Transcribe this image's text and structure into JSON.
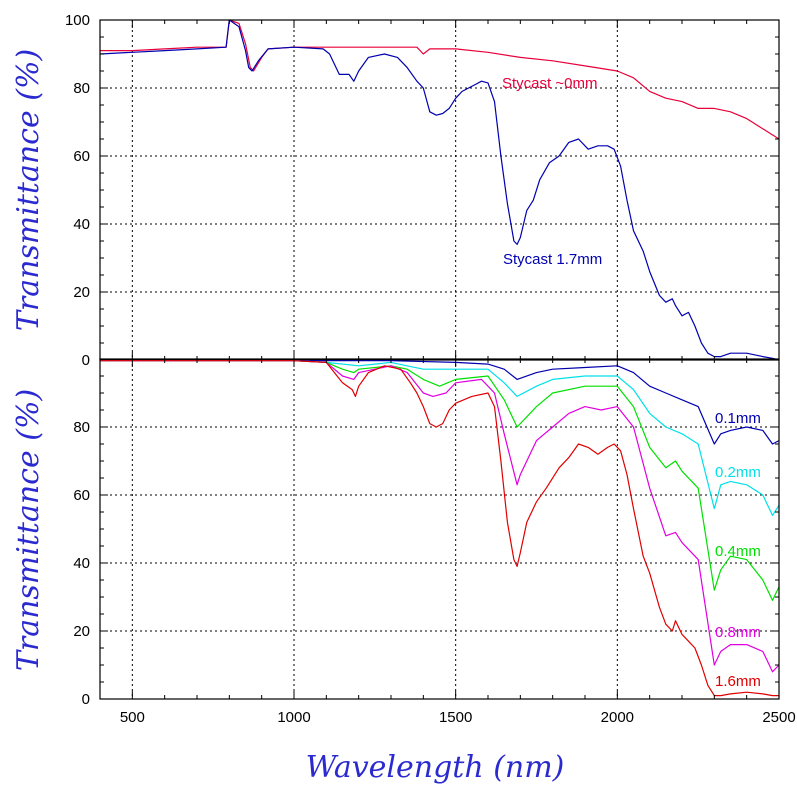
{
  "colors": {
    "axis_title": "#2a2ad0",
    "red": "#e00000",
    "crimson": "#e8003a",
    "blue": "#0000b0",
    "cyan": "#00e0e8",
    "green": "#00e000",
    "magenta": "#e000e0",
    "black": "#000000"
  },
  "axes": {
    "xlabel": "Wavelength (nm)",
    "upper_ylabel": "Transmittance (%)",
    "lower_ylabel": "Transmittance (%)"
  },
  "chart_data": [
    {
      "type": "line",
      "panel": "upper",
      "xlim": [
        400,
        2500
      ],
      "ylim": [
        0,
        100
      ],
      "xticks": [
        500,
        1000,
        1500,
        2000,
        2500
      ],
      "yticks": [
        0,
        20,
        40,
        60,
        80,
        100
      ],
      "grid": true,
      "series": [
        {
          "name": "Stycast ~0mm",
          "color": "#e8003a",
          "x": [
            400,
            500,
            600,
            700,
            790,
            800,
            830,
            850,
            865,
            875,
            900,
            920,
            1000,
            1100,
            1200,
            1300,
            1380,
            1400,
            1420,
            1500,
            1600,
            1700,
            1800,
            1900,
            2000,
            2050,
            2100,
            2150,
            2200,
            2250,
            2300,
            2350,
            2400,
            2450,
            2500
          ],
          "y": [
            91,
            91,
            91.5,
            92,
            92,
            100,
            99,
            93,
            86,
            85,
            89,
            91.5,
            92,
            92,
            92,
            92,
            92,
            90,
            91.5,
            91.5,
            90.5,
            89,
            88,
            86.5,
            85,
            83,
            79,
            77,
            76,
            74,
            74,
            73,
            71,
            68,
            65
          ]
        },
        {
          "name": "Stycast 1.7mm",
          "color": "#0000b0",
          "x": [
            400,
            500,
            600,
            700,
            790,
            800,
            830,
            850,
            860,
            870,
            890,
            920,
            1000,
            1090,
            1110,
            1140,
            1170,
            1185,
            1200,
            1230,
            1280,
            1320,
            1350,
            1380,
            1400,
            1420,
            1440,
            1460,
            1480,
            1500,
            1520,
            1540,
            1560,
            1580,
            1600,
            1620,
            1640,
            1660,
            1680,
            1690,
            1700,
            1720,
            1740,
            1760,
            1790,
            1820,
            1850,
            1880,
            1910,
            1940,
            1970,
            1990,
            2010,
            2030,
            2050,
            2080,
            2100,
            2130,
            2150,
            2170,
            2180,
            2200,
            2220,
            2240,
            2260,
            2280,
            2300,
            2320,
            2350,
            2400,
            2450,
            2480,
            2500
          ],
          "y": [
            90,
            90.5,
            91,
            91.5,
            92,
            100,
            98,
            91,
            86,
            85,
            88,
            91.5,
            92,
            91.5,
            90,
            84,
            84,
            82,
            85,
            89,
            90,
            89,
            86,
            82,
            80,
            73,
            72,
            72.5,
            74,
            77,
            79,
            80,
            81,
            82,
            81.5,
            76,
            60,
            46,
            35,
            34,
            36,
            44,
            47,
            53,
            58,
            60,
            64,
            65,
            62,
            63,
            63,
            62,
            57,
            47,
            38,
            32,
            26,
            19,
            17,
            18,
            16,
            13,
            14,
            10,
            5,
            2,
            1,
            1,
            2,
            2,
            1,
            0.5,
            0
          ]
        }
      ]
    },
    {
      "type": "line",
      "panel": "lower",
      "xlim": [
        400,
        2500
      ],
      "ylim": [
        0,
        100
      ],
      "xticks": [
        500,
        1000,
        1500,
        2000,
        2500
      ],
      "yticks": [
        0,
        20,
        40,
        60,
        80
      ],
      "grid": true,
      "series": [
        {
          "name": "0.1mm",
          "color": "#0000b0",
          "x": [
            400,
            700,
            1000,
            1100,
            1200,
            1300,
            1500,
            1600,
            1650,
            1690,
            1750,
            1800,
            1900,
            2000,
            2050,
            2100,
            2150,
            2200,
            2250,
            2300,
            2320,
            2350,
            2400,
            2450,
            2480,
            2500
          ],
          "y": [
            99.5,
            99.5,
            99.5,
            99.5,
            99.5,
            99.5,
            99,
            98.5,
            97,
            94,
            96,
            97,
            97.5,
            98,
            96,
            92,
            90,
            88,
            86,
            75,
            78,
            79,
            80,
            79,
            75,
            76
          ]
        },
        {
          "name": "0.2mm",
          "color": "#00e0e8",
          "x": [
            400,
            700,
            1000,
            1100,
            1200,
            1300,
            1400,
            1500,
            1600,
            1650,
            1690,
            1750,
            1800,
            1900,
            2000,
            2050,
            2100,
            2150,
            2200,
            2250,
            2300,
            2320,
            2350,
            2400,
            2450,
            2480,
            2500
          ],
          "y": [
            99.5,
            99.5,
            99.5,
            99,
            98,
            99,
            97,
            97,
            97,
            93,
            89,
            92,
            94,
            95,
            95,
            91,
            84,
            80,
            78,
            75,
            56,
            63,
            64,
            63,
            60,
            54,
            57
          ]
        },
        {
          "name": "0.4mm",
          "color": "#00e000",
          "x": [
            400,
            700,
            1000,
            1100,
            1150,
            1185,
            1200,
            1300,
            1350,
            1400,
            1450,
            1500,
            1600,
            1650,
            1690,
            1750,
            1800,
            1900,
            2000,
            2050,
            2100,
            2150,
            2180,
            2200,
            2250,
            2300,
            2320,
            2350,
            2400,
            2450,
            2480,
            2500
          ],
          "y": [
            99.5,
            99.5,
            99.5,
            99,
            97,
            96,
            97,
            98,
            97,
            94,
            92,
            94,
            95,
            88,
            80,
            86,
            90,
            92,
            92,
            86,
            74,
            68,
            70,
            67,
            62,
            32,
            38,
            42,
            41,
            35,
            29,
            33
          ]
        },
        {
          "name": "0.8mm",
          "color": "#e000e0",
          "x": [
            400,
            700,
            1000,
            1100,
            1150,
            1185,
            1200,
            1300,
            1350,
            1400,
            1430,
            1470,
            1500,
            1580,
            1620,
            1650,
            1690,
            1700,
            1750,
            1800,
            1850,
            1900,
            1950,
            2000,
            2050,
            2100,
            2150,
            2180,
            2200,
            2250,
            2300,
            2320,
            2350,
            2400,
            2450,
            2480,
            2500
          ],
          "y": [
            99.5,
            99.5,
            99.5,
            99,
            95,
            94,
            96,
            98,
            96,
            90,
            89,
            90,
            93,
            94,
            90,
            78,
            63,
            66,
            76,
            80,
            84,
            86,
            85,
            86,
            80,
            62,
            48,
            49,
            46,
            41,
            10,
            14,
            16,
            16,
            14,
            8,
            10
          ]
        },
        {
          "name": "1.6mm",
          "color": "#e00000",
          "x": [
            400,
            700,
            1000,
            1100,
            1150,
            1180,
            1190,
            1200,
            1230,
            1280,
            1330,
            1360,
            1380,
            1400,
            1420,
            1440,
            1460,
            1480,
            1500,
            1550,
            1600,
            1620,
            1640,
            1660,
            1680,
            1690,
            1700,
            1720,
            1750,
            1780,
            1820,
            1850,
            1880,
            1910,
            1940,
            1970,
            1990,
            2010,
            2030,
            2050,
            2080,
            2100,
            2130,
            2150,
            2170,
            2180,
            2200,
            2220,
            2240,
            2260,
            2280,
            2300,
            2320,
            2350,
            2400,
            2450,
            2480,
            2500
          ],
          "y": [
            99.5,
            99.5,
            99.5,
            99,
            93,
            91,
            89,
            92,
            96,
            98,
            97,
            93,
            90,
            86,
            81,
            80,
            81,
            85,
            87,
            89,
            90,
            86,
            70,
            52,
            41,
            39,
            43,
            52,
            58,
            62,
            68,
            71,
            75,
            74,
            72,
            74,
            75,
            73,
            66,
            56,
            42,
            37,
            27,
            22,
            20,
            23,
            19,
            17,
            15,
            10,
            4,
            1,
            1,
            1.5,
            2,
            1.5,
            1,
            1
          ]
        }
      ]
    }
  ]
}
